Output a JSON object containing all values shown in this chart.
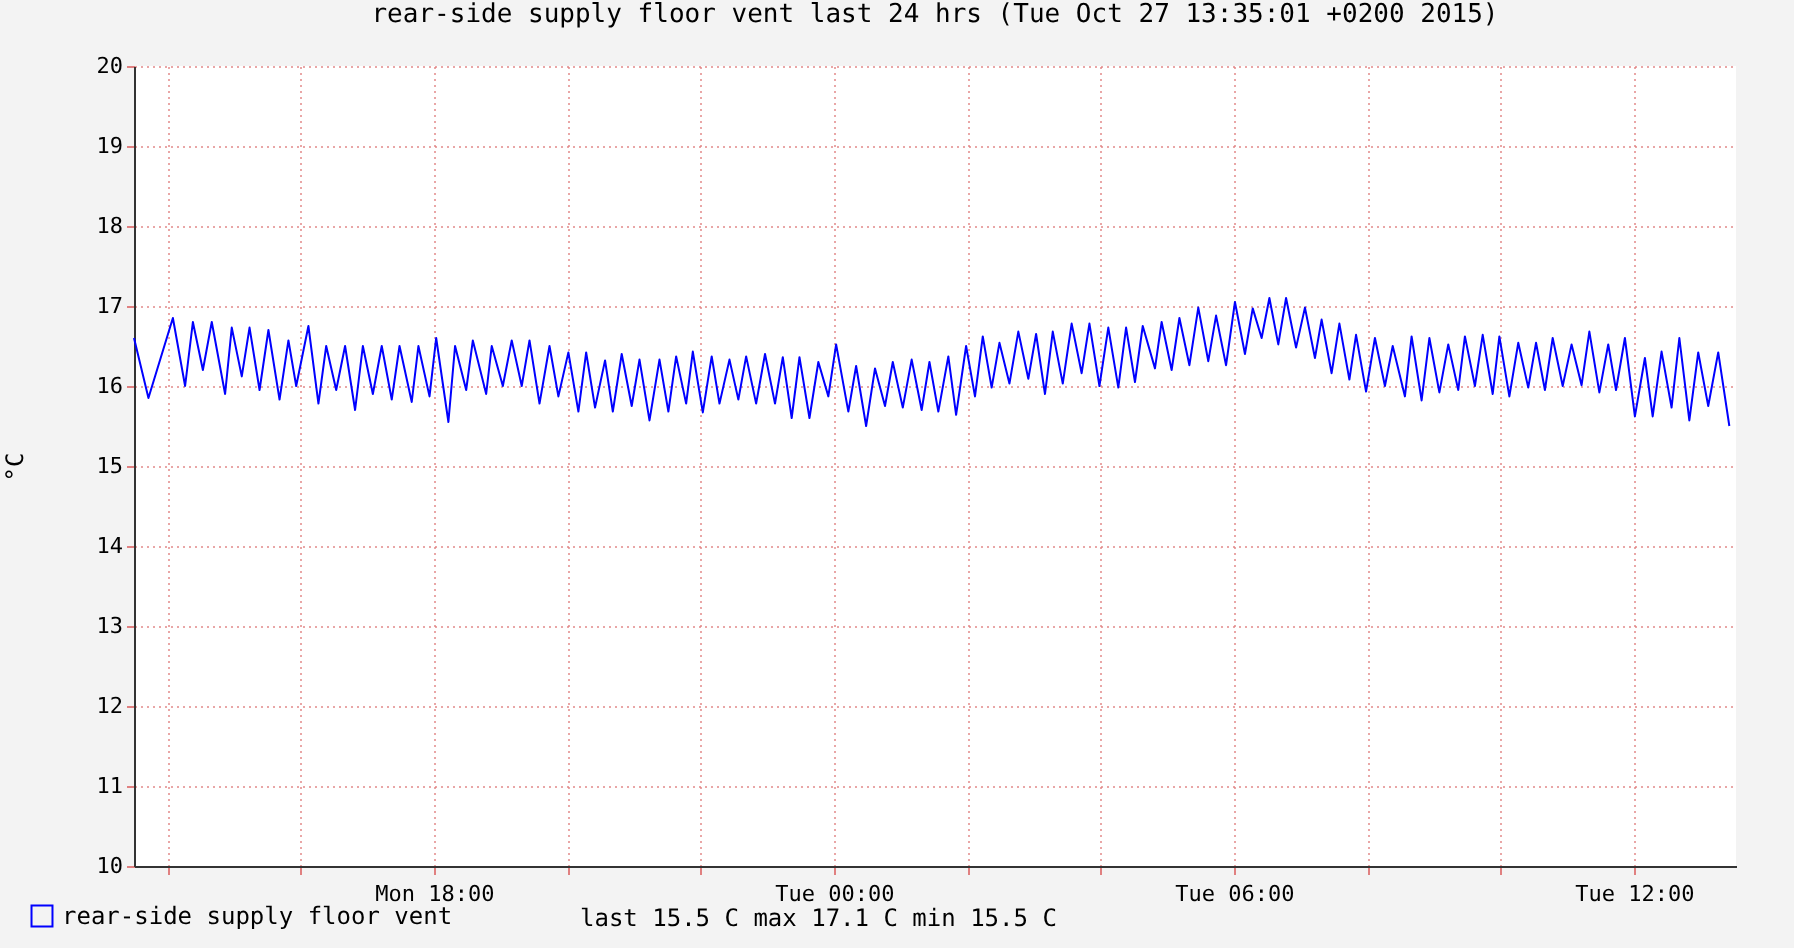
{
  "chart_data": {
    "type": "line",
    "title": "rear-side supply floor vent last 24 hrs (Tue Oct 27 13:35:01 +0200 2015)",
    "ylabel": "°C",
    "annotations": [
      "last  15.5 C   max  17.1 C   min  15.5 C"
    ],
    "legend": "bottom",
    "grid": true,
    "xlim": [
      "2015-10-26T13:30",
      "2015-10-27T13:32"
    ],
    "xticks": [
      {
        "value": "2015-10-26T14:00",
        "label": null
      },
      {
        "value": "2015-10-26T16:00",
        "label": null
      },
      {
        "value": "2015-10-26T18:00",
        "label": "Mon 18:00"
      },
      {
        "value": "2015-10-26T20:00",
        "label": null
      },
      {
        "value": "2015-10-26T22:00",
        "label": null
      },
      {
        "value": "2015-10-27T00:00",
        "label": "Tue 00:00"
      },
      {
        "value": "2015-10-27T02:00",
        "label": null
      },
      {
        "value": "2015-10-27T04:00",
        "label": null
      },
      {
        "value": "2015-10-27T06:00",
        "label": "Tue 06:00"
      },
      {
        "value": "2015-10-27T08:00",
        "label": null
      },
      {
        "value": "2015-10-27T10:00",
        "label": null
      },
      {
        "value": "2015-10-27T12:00",
        "label": "Tue 12:00"
      }
    ],
    "ylim": [
      10,
      20
    ],
    "yticks": [
      10,
      11,
      12,
      13,
      14,
      15,
      16,
      17,
      18,
      19,
      20
    ],
    "series": [
      {
        "name": "rear-side supply floor vent",
        "color": "#0000ff",
        "x": [
          "2015-10-26T13:30",
          "2015-10-26T13:43",
          "2015-10-26T14:05",
          "2015-10-26T14:16",
          "2015-10-26T14:23",
          "2015-10-26T14:32",
          "2015-10-26T14:40",
          "2015-10-26T14:52",
          "2015-10-26T14:58",
          "2015-10-26T15:07",
          "2015-10-26T15:14",
          "2015-10-26T15:23",
          "2015-10-26T15:31",
          "2015-10-26T15:41",
          "2015-10-26T15:49",
          "2015-10-26T15:56",
          "2015-10-26T16:07",
          "2015-10-26T16:16",
          "2015-10-26T16:23",
          "2015-10-26T16:32",
          "2015-10-26T16:40",
          "2015-10-26T16:49",
          "2015-10-26T16:56",
          "2015-10-26T17:05",
          "2015-10-26T17:13",
          "2015-10-26T17:22",
          "2015-10-26T17:29",
          "2015-10-26T17:40",
          "2015-10-26T17:46",
          "2015-10-26T17:56",
          "2015-10-26T18:02",
          "2015-10-26T18:13",
          "2015-10-26T18:19",
          "2015-10-26T18:29",
          "2015-10-26T18:35",
          "2015-10-26T18:47",
          "2015-10-26T18:52",
          "2015-10-26T19:02",
          "2015-10-26T19:10",
          "2015-10-26T19:19",
          "2015-10-26T19:26",
          "2015-10-26T19:35",
          "2015-10-26T19:44",
          "2015-10-26T19:52",
          "2015-10-26T20:01",
          "2015-10-26T20:10",
          "2015-10-26T20:17",
          "2015-10-26T20:25",
          "2015-10-26T20:34",
          "2015-10-26T20:41",
          "2015-10-26T20:49",
          "2015-10-26T20:58",
          "2015-10-26T21:05",
          "2015-10-26T21:14",
          "2015-10-26T21:23",
          "2015-10-26T21:31",
          "2015-10-26T21:38",
          "2015-10-26T21:47",
          "2015-10-26T21:53",
          "2015-10-26T22:02",
          "2015-10-26T22:10",
          "2015-10-26T22:17",
          "2015-10-26T22:26",
          "2015-10-26T22:34",
          "2015-10-26T22:41",
          "2015-10-26T22:50",
          "2015-10-26T22:58",
          "2015-10-26T23:07",
          "2015-10-26T23:14",
          "2015-10-26T23:22",
          "2015-10-26T23:29",
          "2015-10-26T23:38",
          "2015-10-26T23:46",
          "2015-10-26T23:55",
          "2015-10-27T00:02",
          "2015-10-27T00:13",
          "2015-10-27T00:20",
          "2015-10-27T00:29",
          "2015-10-27T00:37",
          "2015-10-27T00:46",
          "2015-10-27T00:53",
          "2015-10-27T01:02",
          "2015-10-27T01:10",
          "2015-10-27T01:19",
          "2015-10-27T01:26",
          "2015-10-27T01:34",
          "2015-10-27T01:43",
          "2015-10-27T01:50",
          "2015-10-27T01:59",
          "2015-10-27T02:07",
          "2015-10-27T02:14",
          "2015-10-27T02:22",
          "2015-10-27T02:29",
          "2015-10-27T02:38",
          "2015-10-27T02:46",
          "2015-10-27T02:55",
          "2015-10-27T03:02",
          "2015-10-27T03:10",
          "2015-10-27T03:17",
          "2015-10-27T03:26",
          "2015-10-27T03:34",
          "2015-10-27T03:43",
          "2015-10-27T03:50",
          "2015-10-27T03:59",
          "2015-10-27T04:07",
          "2015-10-27T04:16",
          "2015-10-27T04:23",
          "2015-10-27T04:31",
          "2015-10-27T04:38",
          "2015-10-27T04:49",
          "2015-10-27T04:55",
          "2015-10-27T05:04",
          "2015-10-27T05:11",
          "2015-10-27T05:20",
          "2015-10-27T05:28",
          "2015-10-27T05:37",
          "2015-10-27T05:44",
          "2015-10-27T05:53",
          "2015-10-27T06:01",
          "2015-10-27T06:10",
          "2015-10-27T06:17",
          "2015-10-27T06:25",
          "2015-10-27T06:32",
          "2015-10-27T06:40",
          "2015-10-27T06:47",
          "2015-10-27T06:56",
          "2015-10-27T07:04",
          "2015-10-27T07:13",
          "2015-10-27T07:19",
          "2015-10-27T07:28",
          "2015-10-27T07:35",
          "2015-10-27T07:44",
          "2015-10-27T07:50",
          "2015-10-27T07:59",
          "2015-10-27T08:07",
          "2015-10-27T08:16",
          "2015-10-27T08:23",
          "2015-10-27T08:34",
          "2015-10-27T08:40",
          "2015-10-27T08:49",
          "2015-10-27T08:56",
          "2015-10-27T09:05",
          "2015-10-27T09:13",
          "2015-10-27T09:22",
          "2015-10-27T09:28",
          "2015-10-27T09:37",
          "2015-10-27T09:44",
          "2015-10-27T09:53",
          "2015-10-27T09:59",
          "2015-10-27T10:08",
          "2015-10-27T10:16",
          "2015-10-27T10:25",
          "2015-10-27T10:32",
          "2015-10-27T10:40",
          "2015-10-27T10:47",
          "2015-10-27T10:56",
          "2015-10-27T11:04",
          "2015-10-27T11:13",
          "2015-10-27T11:20",
          "2015-10-27T11:29",
          "2015-10-27T11:37",
          "2015-10-27T11:44",
          "2015-10-27T11:52",
          "2015-10-27T12:01",
          "2015-10-27T12:10",
          "2015-10-27T12:17",
          "2015-10-27T12:25",
          "2015-10-27T12:34",
          "2015-10-27T12:41",
          "2015-10-27T12:50",
          "2015-10-27T12:58",
          "2015-10-27T13:07",
          "2015-10-27T13:16",
          "2015-10-27T13:26"
        ],
        "values": [
          16.6,
          15.85,
          16.85,
          16.0,
          16.8,
          16.2,
          16.8,
          15.9,
          16.73,
          16.12,
          16.73,
          15.95,
          16.7,
          15.83,
          16.57,
          16.0,
          16.75,
          15.78,
          16.5,
          15.95,
          16.5,
          15.7,
          16.5,
          15.9,
          16.5,
          15.83,
          16.5,
          15.8,
          16.5,
          15.87,
          16.6,
          15.55,
          16.5,
          15.95,
          16.57,
          15.9,
          16.5,
          16.0,
          16.57,
          16.0,
          16.57,
          15.78,
          16.5,
          15.87,
          16.42,
          15.68,
          16.42,
          15.73,
          16.32,
          15.68,
          16.4,
          15.75,
          16.33,
          15.57,
          16.33,
          15.68,
          16.37,
          15.78,
          16.43,
          15.67,
          16.37,
          15.78,
          16.33,
          15.83,
          16.37,
          15.78,
          16.4,
          15.78,
          16.36,
          15.6,
          16.36,
          15.6,
          16.3,
          15.87,
          16.52,
          15.68,
          16.25,
          15.5,
          16.22,
          15.75,
          16.3,
          15.73,
          16.33,
          15.7,
          16.3,
          15.68,
          16.37,
          15.64,
          16.5,
          15.87,
          16.62,
          15.98,
          16.54,
          16.03,
          16.68,
          16.09,
          16.65,
          15.9,
          16.68,
          16.03,
          16.78,
          16.16,
          16.78,
          16.0,
          16.73,
          15.98,
          16.73,
          16.05,
          16.75,
          16.22,
          16.8,
          16.2,
          16.85,
          16.26,
          16.98,
          16.31,
          16.88,
          16.26,
          17.05,
          16.4,
          16.97,
          16.6,
          17.1,
          16.52,
          17.1,
          16.48,
          16.98,
          16.35,
          16.83,
          16.16,
          16.78,
          16.08,
          16.64,
          15.93,
          16.6,
          16.0,
          16.5,
          15.87,
          16.62,
          15.82,
          16.6,
          15.92,
          16.52,
          15.95,
          16.62,
          16.0,
          16.64,
          15.9,
          16.62,
          15.87,
          16.54,
          15.98,
          16.54,
          15.95,
          16.6,
          16.0,
          16.52,
          16.01,
          16.68,
          15.92,
          16.52,
          15.95,
          16.6,
          15.62,
          16.35,
          15.62,
          16.43,
          15.73,
          16.6,
          15.57,
          16.42,
          15.75,
          16.42,
          15.5
        ]
      }
    ]
  }
}
